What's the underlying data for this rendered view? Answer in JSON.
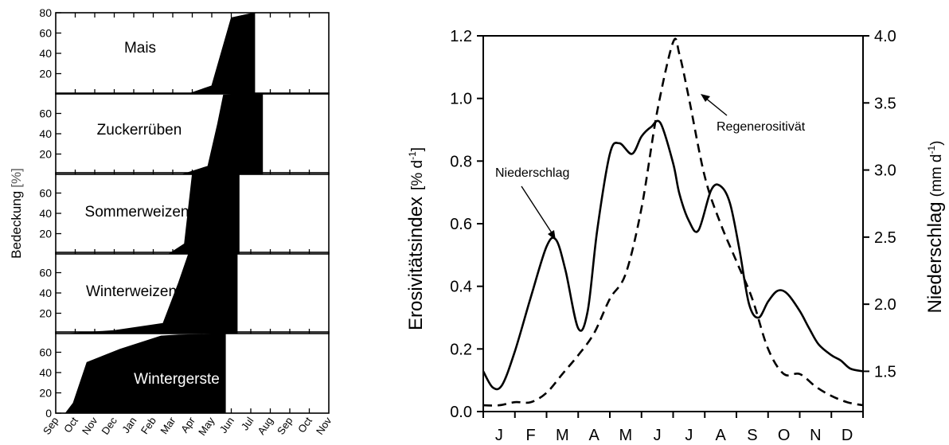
{
  "chart_data": [
    {
      "type": "area",
      "ylabel": "Bedeckung",
      "ylabel_unit": "[%]",
      "ylim": [
        0,
        80
      ],
      "ytick_values": [
        0,
        20,
        40,
        60,
        80
      ],
      "x_tick_labels": [
        "Sep",
        "Oct",
        "Nov",
        "Dec",
        "Jan",
        "Feb",
        "Mar",
        "Apr",
        "May",
        "Jun",
        "Jul",
        "Aug",
        "Sep",
        "Oct",
        "Nov"
      ],
      "panels": [
        {
          "label": "Mais",
          "points": [
            [
              6.8,
              0
            ],
            [
              8.0,
              8
            ],
            [
              9.0,
              75
            ],
            [
              10.2,
              80
            ],
            [
              10.2,
              0
            ]
          ]
        },
        {
          "label": "Zuckerrüben",
          "points": [
            [
              6.5,
              0
            ],
            [
              7.8,
              8
            ],
            [
              8.3,
              50
            ],
            [
              8.6,
              78
            ],
            [
              10.6,
              80
            ],
            [
              10.6,
              0
            ]
          ]
        },
        {
          "label": "Sommerweizen",
          "points": [
            [
              5.8,
              0
            ],
            [
              6.6,
              10
            ],
            [
              7.0,
              78
            ],
            [
              9.4,
              80
            ],
            [
              9.4,
              0
            ]
          ]
        },
        {
          "label": "Winterweizen",
          "points": [
            [
              0.7,
              0
            ],
            [
              3.0,
              3
            ],
            [
              5.5,
              10
            ],
            [
              6.3,
              50
            ],
            [
              6.8,
              78
            ],
            [
              9.3,
              80
            ],
            [
              9.3,
              0
            ]
          ]
        },
        {
          "label": "Wintergerste",
          "points": [
            [
              0.5,
              0
            ],
            [
              0.9,
              10
            ],
            [
              1.6,
              50
            ],
            [
              3.3,
              63
            ],
            [
              5.4,
              76
            ],
            [
              6.3,
              77
            ],
            [
              8.7,
              78
            ],
            [
              8.7,
              0
            ]
          ]
        }
      ]
    },
    {
      "type": "line",
      "ylabel": "Erosivitätsindex",
      "ylabel_unit_base": "[% d",
      "ylabel_unit_sup": "-1",
      "ylabel_unit_end": "]",
      "y2label": "Niederschlag",
      "y2label_unit_base": "(mm d",
      "y2label_unit_sup": "-1",
      "y2label_unit_end": ")",
      "ylim": [
        0,
        1.2
      ],
      "yticks": [
        "0.0",
        "0.2",
        "0.4",
        "0.6",
        "0.8",
        "1.0",
        "1.2"
      ],
      "y2lim": [
        1.2,
        4.0
      ],
      "y2ticks": [
        "1.5",
        "2.0",
        "2.5",
        "3.0",
        "3.5",
        "4.0"
      ],
      "x_tick_labels": [
        "J",
        "F",
        "M",
        "A",
        "M",
        "J",
        "J",
        "A",
        "S",
        "O",
        "N",
        "D"
      ],
      "series": [
        {
          "name": "Regenerositivät",
          "axis": "left",
          "style": "dashed",
          "x": [
            0.0,
            0.5,
            1.0,
            1.5,
            2.0,
            2.5,
            3.0,
            3.5,
            4.0,
            4.5,
            5.0,
            5.5,
            6.0,
            6.2,
            6.5,
            7.0,
            7.5,
            8.0,
            8.5,
            9.0,
            9.5,
            10.0,
            10.5,
            11.0,
            11.5,
            12.0
          ],
          "values": [
            0.02,
            0.02,
            0.03,
            0.03,
            0.06,
            0.12,
            0.18,
            0.25,
            0.36,
            0.44,
            0.65,
            0.96,
            1.18,
            1.14,
            1.0,
            0.75,
            0.6,
            0.48,
            0.36,
            0.2,
            0.12,
            0.12,
            0.08,
            0.05,
            0.03,
            0.02
          ]
        },
        {
          "name": "Niederschlag",
          "axis": "right",
          "style": "solid",
          "x": [
            0.0,
            0.3,
            0.6,
            1.0,
            1.5,
            2.0,
            2.3,
            2.6,
            3.0,
            3.3,
            3.6,
            4.0,
            4.3,
            4.7,
            5.0,
            5.3,
            5.6,
            6.0,
            6.2,
            6.5,
            6.8,
            7.2,
            7.5,
            7.8,
            8.1,
            8.4,
            8.7,
            9.0,
            9.3,
            9.6,
            10.0,
            10.3,
            10.6,
            11.0,
            11.3,
            11.6,
            12.0
          ],
          "values": [
            1.5,
            1.38,
            1.4,
            1.65,
            2.05,
            2.43,
            2.48,
            2.25,
            1.82,
            1.95,
            2.55,
            3.12,
            3.2,
            3.12,
            3.25,
            3.32,
            3.35,
            3.05,
            2.82,
            2.62,
            2.55,
            2.85,
            2.88,
            2.75,
            2.4,
            2.0,
            1.9,
            2.02,
            2.1,
            2.08,
            1.95,
            1.82,
            1.7,
            1.62,
            1.58,
            1.52,
            1.5
          ]
        }
      ]
    }
  ]
}
